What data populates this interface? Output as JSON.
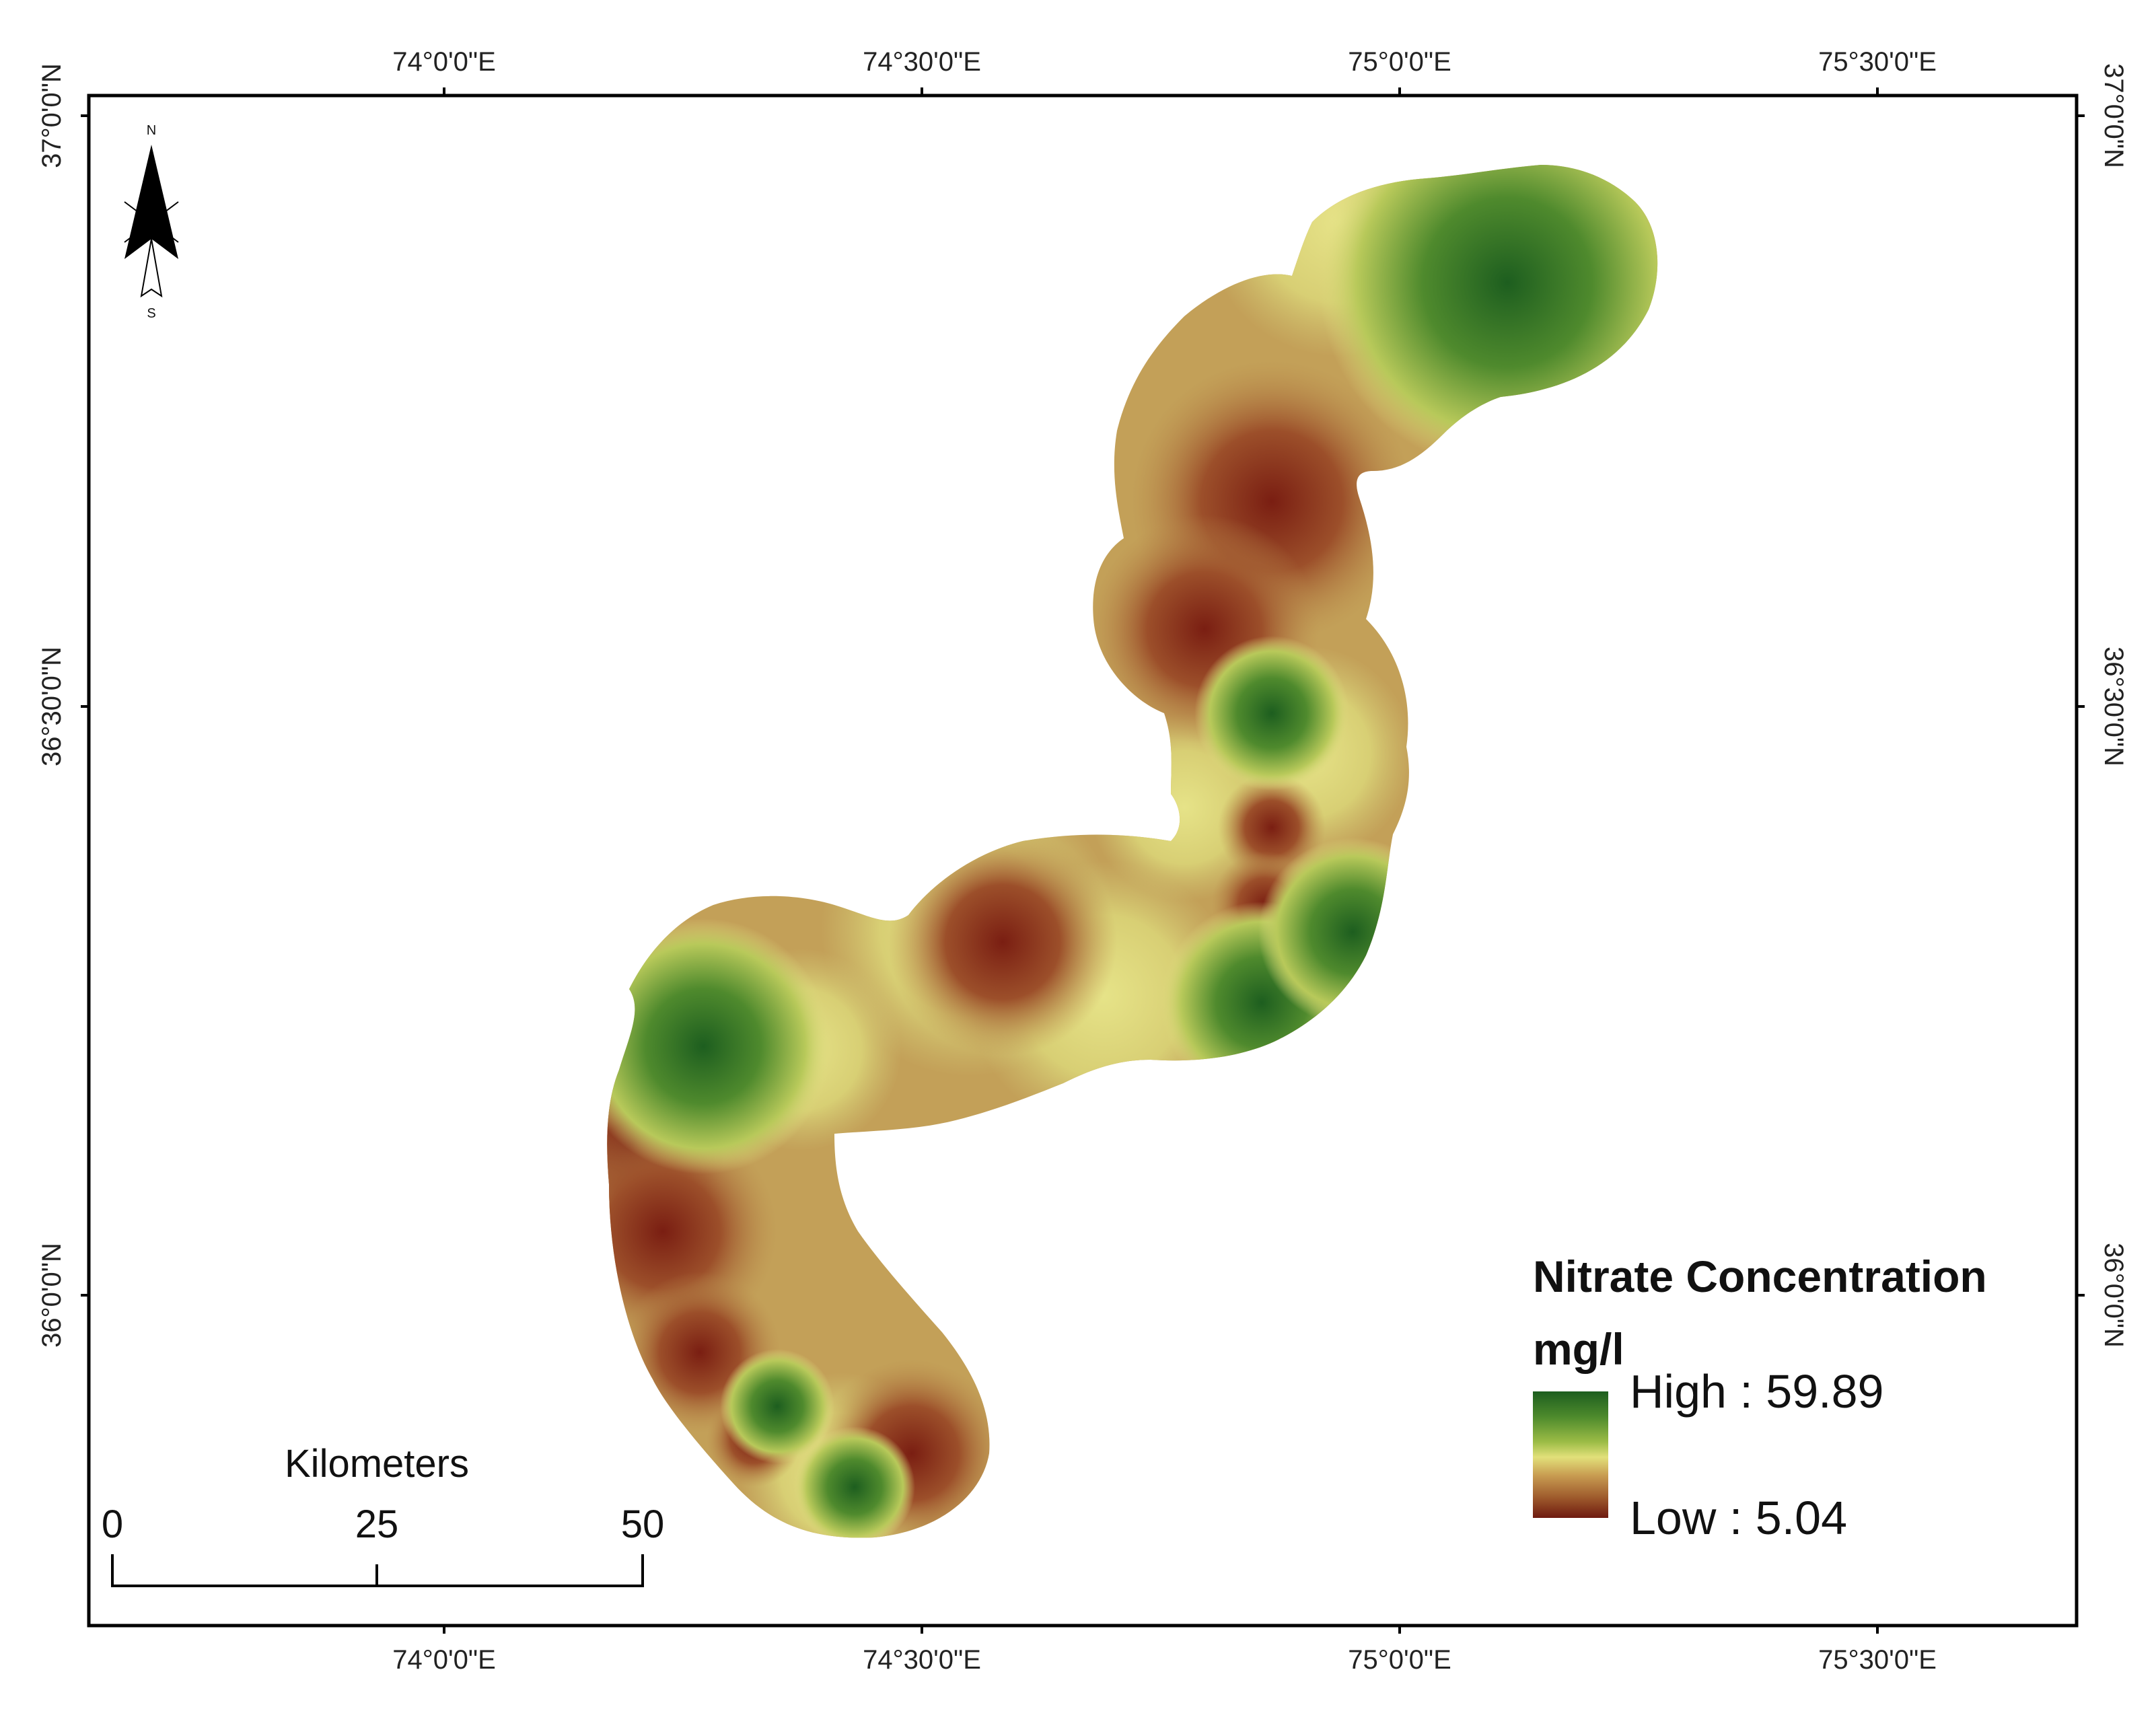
{
  "map": {
    "graticule": {
      "longitude_labels": [
        "74°0'0\"E",
        "74°30'0\"E",
        "75°0'0\"E",
        "75°30'0\"E"
      ],
      "latitude_labels": [
        "37°0'0\"N",
        "36°30'0\"N",
        "36°0'0\"N"
      ]
    },
    "north_arrow": {
      "north": "N",
      "south": "S"
    },
    "scale_bar": {
      "unit": "Kilometers",
      "labels": [
        "0",
        "25",
        "50"
      ]
    },
    "legend": {
      "title_line1": "Nitrate Concentration",
      "title_line2": "mg/l",
      "high_label": "High : 59.89",
      "low_label": "Low : 5.04",
      "ramp_colors": [
        "#1d5e1f",
        "#4d8a2c",
        "#9cbc46",
        "#e2e07a",
        "#c99e52",
        "#9e5a2c",
        "#6e1a10"
      ]
    },
    "colors": {
      "frame": "#000000",
      "high": "#1d5e1f",
      "mid": "#d9d37a",
      "low": "#7c1e12",
      "base": "#bd9a52"
    }
  }
}
